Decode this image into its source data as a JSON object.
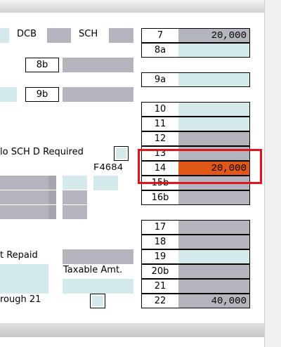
{
  "header_labels": {
    "dcb": "DCB",
    "sch": "SCH"
  },
  "left_line_numbers": [
    "8b",
    "9b"
  ],
  "left_labels": {
    "sch_d": "lo SCH D Required",
    "repaid": "t Repaid",
    "taxable": "Taxable Amt.",
    "through": "rough 21"
  },
  "field_code": "F4684",
  "lines": [
    {
      "number": "7",
      "amount": "20,000"
    },
    {
      "number": "8a"
    },
    {
      "number": "9a"
    },
    {
      "number": "10"
    },
    {
      "number": "11"
    },
    {
      "number": "12"
    },
    {
      "number": "13"
    },
    {
      "number": "14",
      "amount": "20,000"
    },
    {
      "number": "15b"
    },
    {
      "number": "16b"
    },
    {
      "number": "17"
    },
    {
      "number": "18"
    },
    {
      "number": "19"
    },
    {
      "number": "20b"
    },
    {
      "number": "21"
    },
    {
      "number": "22",
      "amount": "40,000"
    }
  ]
}
